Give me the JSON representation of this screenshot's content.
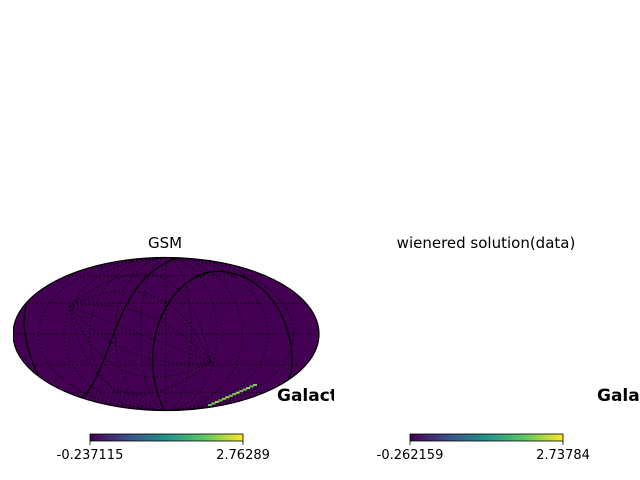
{
  "chart_data": [
    {
      "type": "heatmap",
      "projection": "mollweide",
      "title": "GSM",
      "coord_label": "Galactic",
      "colormap": "viridis",
      "colorbar": {
        "min": "-0.237115",
        "max": "2.76289"
      },
      "background_color": "#440154",
      "graticule": true
    },
    {
      "type": "heatmap",
      "projection": "mollweide",
      "title": "wienered solution(data)",
      "coord_label": "Galactic",
      "colormap": "viridis",
      "colorbar": {
        "min": "-0.262159",
        "max": "2.73784"
      },
      "background_color": "#440154",
      "graticule": true
    }
  ]
}
